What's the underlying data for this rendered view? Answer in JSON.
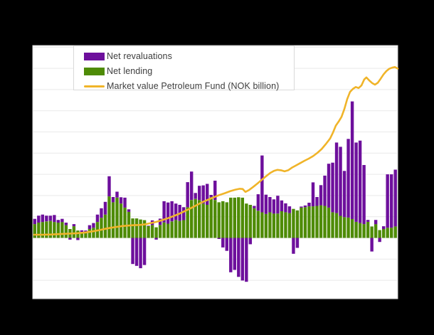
{
  "window": {
    "background_color": "#000000",
    "plot_background_color": "#ffffff",
    "gridline_color": "#e9e9e9",
    "plot_border_color": "#d9d9d9"
  },
  "legend": {
    "items": [
      {
        "label": "Net revaluations",
        "color": "#6d0f9c",
        "swatch": "rect"
      },
      {
        "label": "Net lending",
        "color": "#4e8b06",
        "swatch": "rect"
      },
      {
        "label": "Market value Petroleum Fund (NOK billion)",
        "color": "#f0b429",
        "swatch": "line"
      }
    ]
  },
  "chart_data": {
    "type": "bar",
    "subtype": "stacked-bars-with-overlaid-line",
    "title": "",
    "xlabel": "",
    "ylabel": "",
    "legend_position": "top-left-inside",
    "grid": "horizontal-only",
    "x_axis": {
      "labels_visible": false,
      "n_bars": 93,
      "note": "quarterly periods; tick labels are cropped out of the visible image"
    },
    "y_axis": {
      "labels_visible": false,
      "min": -285,
      "max": 905,
      "gridline_step": 100,
      "zero_line": 0,
      "note": "gridlines are unlabeled in the image; values are estimated chart units where one gridline spacing = 100"
    },
    "series": [
      {
        "name": "Net lending",
        "type": "bar",
        "color": "#4e8b06",
        "stack": "base",
        "values": [
          65,
          72,
          75,
          78,
          80,
          75,
          72,
          75,
          60,
          42,
          55,
          35,
          28,
          30,
          42,
          48,
          75,
          95,
          110,
          196,
          168,
          190,
          162,
          143,
          123,
          92,
          92,
          87,
          84,
          56,
          61,
          50,
          61,
          73,
          67,
          78,
          84,
          80,
          84,
          145,
          179,
          184,
          179,
          162,
          156,
          192,
          179,
          168,
          173,
          168,
          190,
          190,
          192,
          190,
          162,
          156,
          140,
          128,
          121,
          113,
          121,
          115,
          115,
          126,
          121,
          117,
          137,
          130,
          143,
          145,
          149,
          149,
          151,
          154,
          151,
          143,
          121,
          117,
          104,
          98,
          96,
          89,
          76,
          70,
          65,
          76,
          54,
          65,
          37,
          42,
          48,
          48,
          54
        ]
      },
      {
        "name": "Net revaluations",
        "type": "bar",
        "color": "#6d0f9c",
        "stack": "stacked-on-net-lending-when-positive, below-zero-when-negative",
        "values": [
          25,
          33,
          35,
          27,
          25,
          33,
          13,
          15,
          12,
          -8,
          10,
          -10,
          8,
          5,
          18,
          22,
          35,
          45,
          60,
          95,
          25,
          28,
          30,
          47,
          12,
          -123,
          -132,
          -143,
          -128,
          2,
          22,
          -8,
          30,
          100,
          100,
          95,
          78,
          76,
          61,
          118,
          134,
          28,
          67,
          86,
          99,
          11,
          91,
          -5,
          -45,
          -61,
          -162,
          -151,
          -184,
          -201,
          -207,
          -30,
          11,
          78,
          268,
          91,
          72,
          67,
          84,
          51,
          42,
          32,
          -75,
          -47,
          5,
          8,
          17,
          113,
          42,
          95,
          143,
          207,
          234,
          333,
          326,
          218,
          371,
          555,
          374,
          389,
          279,
          9,
          -64,
          20,
          -19,
          13,
          252,
          252,
          268
        ]
      },
      {
        "name": "Market value Petroleum Fund (NOK billion)",
        "type": "line",
        "color": "#f0b429",
        "points_note": "pairs of [x position in image px across plot, value in chart units]",
        "points": [
          [
            48,
            15
          ],
          [
            60,
            15
          ],
          [
            72,
            16
          ],
          [
            84,
            18
          ],
          [
            96,
            20
          ],
          [
            108,
            22
          ],
          [
            120,
            26
          ],
          [
            130,
            31
          ],
          [
            140,
            37
          ],
          [
            148,
            43
          ],
          [
            156,
            48
          ],
          [
            164,
            52
          ],
          [
            172,
            56
          ],
          [
            180,
            58
          ],
          [
            188,
            60
          ],
          [
            196,
            61
          ],
          [
            204,
            64
          ],
          [
            212,
            70
          ],
          [
            220,
            76
          ],
          [
            228,
            84
          ],
          [
            236,
            93
          ],
          [
            244,
            103
          ],
          [
            252,
            114
          ],
          [
            260,
            127
          ],
          [
            268,
            140
          ],
          [
            276,
            154
          ],
          [
            284,
            168
          ],
          [
            292,
            180
          ],
          [
            300,
            191
          ],
          [
            308,
            202
          ],
          [
            316,
            211
          ],
          [
            324,
            221
          ],
          [
            331,
            228
          ],
          [
            337,
            232
          ],
          [
            341,
            231
          ],
          [
            345,
            217
          ],
          [
            350,
            226
          ],
          [
            356,
            241
          ],
          [
            362,
            257
          ],
          [
            368,
            274
          ],
          [
            374,
            291
          ],
          [
            380,
            307
          ],
          [
            385,
            316
          ],
          [
            390,
            321
          ],
          [
            395,
            319
          ],
          [
            400,
            314
          ],
          [
            405,
            319
          ],
          [
            410,
            331
          ],
          [
            416,
            342
          ],
          [
            422,
            353
          ],
          [
            428,
            364
          ],
          [
            434,
            374
          ],
          [
            440,
            386
          ],
          [
            446,
            401
          ],
          [
            452,
            419
          ],
          [
            458,
            443
          ],
          [
            464,
            469
          ],
          [
            468,
            497
          ],
          [
            472,
            530
          ],
          [
            476,
            549
          ],
          [
            480,
            571
          ],
          [
            484,
            608
          ],
          [
            488,
            655
          ],
          [
            492,
            689
          ],
          [
            496,
            703
          ],
          [
            500,
            712
          ],
          [
            504,
            707
          ],
          [
            508,
            719
          ],
          [
            512,
            748
          ],
          [
            515,
            757
          ],
          [
            519,
            743
          ],
          [
            523,
            731
          ],
          [
            527,
            723
          ],
          [
            531,
            732
          ],
          [
            535,
            751
          ],
          [
            539,
            771
          ],
          [
            543,
            787
          ],
          [
            547,
            798
          ],
          [
            551,
            803
          ],
          [
            555,
            806
          ],
          [
            559,
            799
          ]
        ]
      }
    ]
  }
}
